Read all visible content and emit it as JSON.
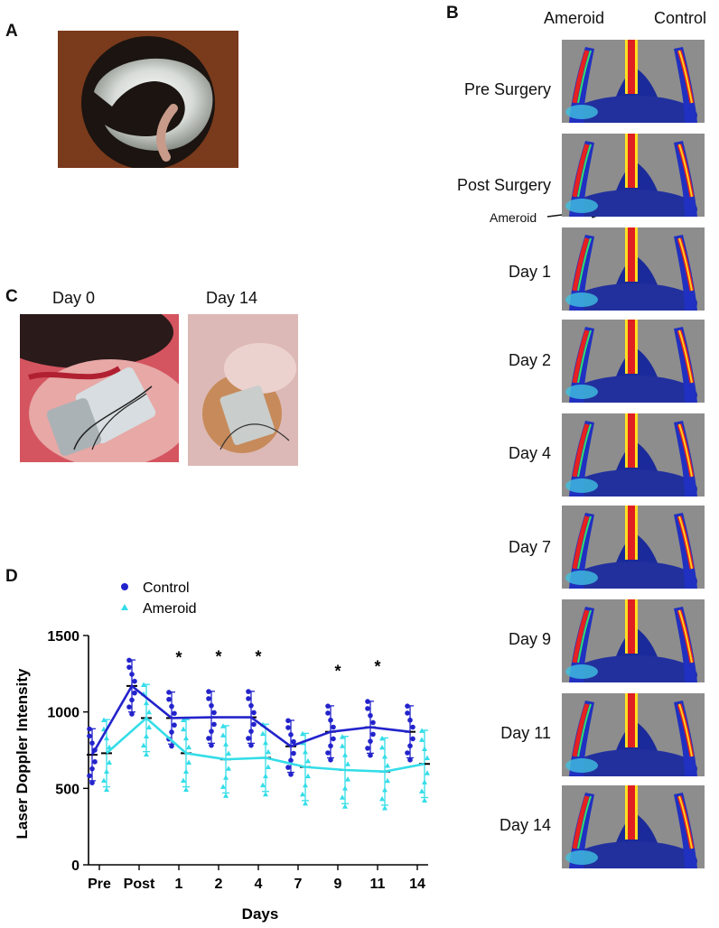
{
  "panels": {
    "a": "A",
    "b": "B",
    "c": "C",
    "d": "D"
  },
  "panel_b": {
    "col_ameroid": "Ameroid",
    "col_control": "Control",
    "rows": [
      "Pre Surgery",
      "Post Surgery",
      "Day 1",
      "Day 2",
      "Day 4",
      "Day 7",
      "Day 9",
      "Day 11",
      "Day 14"
    ],
    "arrow_label": "Ameroid"
  },
  "panel_c": {
    "left_caption": "Day 0",
    "right_caption": "Day 14"
  },
  "colors": {
    "control": "#2323cc",
    "ameroid": "#33dde8"
  },
  "chart_data": {
    "type": "line",
    "ylabel": "Laser Doppler Intensity",
    "xlabel": "Days",
    "ylim": [
      0,
      1500
    ],
    "yticks": [
      "0",
      "500",
      "1000",
      "1500"
    ],
    "categories": [
      "Pre",
      "Post",
      "1",
      "2",
      "4",
      "7",
      "9",
      "11",
      "14"
    ],
    "series": [
      {
        "name": "Control",
        "marker": "circle",
        "values": [
          720,
          1170,
          960,
          965,
          965,
          775,
          870,
          900,
          870
        ]
      },
      {
        "name": "Ameroid",
        "marker": "triangle",
        "values": [
          730,
          960,
          730,
          690,
          700,
          640,
          620,
          610,
          660
        ]
      }
    ],
    "significance": [
      "",
      "",
      "*",
      "*",
      "*",
      "",
      "*",
      "*",
      ""
    ]
  }
}
